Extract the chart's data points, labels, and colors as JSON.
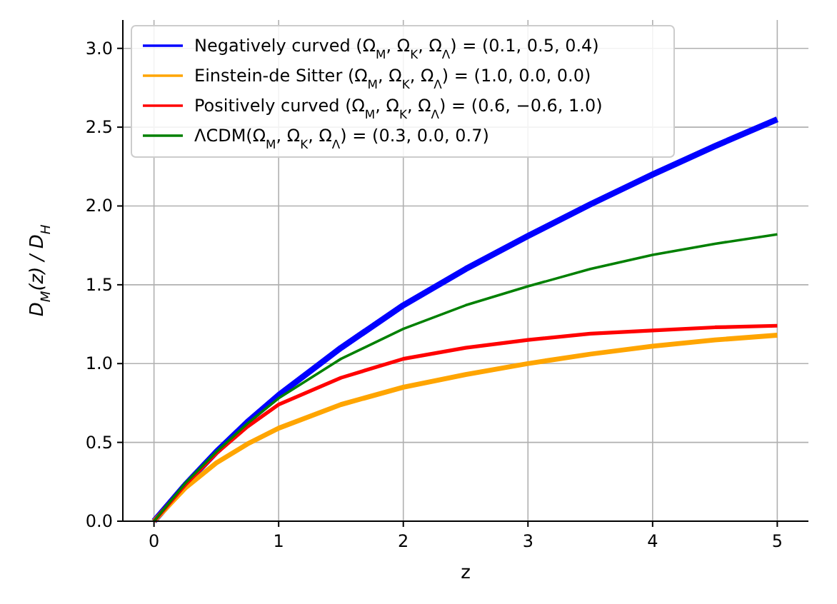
{
  "chart_data": {
    "type": "line",
    "xlabel": "z",
    "ylabel": "D$_{M}$(z) / D$_{H}$",
    "x": [
      0,
      0.25,
      0.5,
      0.75,
      1,
      1.5,
      2,
      2.5,
      3,
      3.5,
      4,
      4.5,
      5
    ],
    "series": [
      {
        "name": "Negatively curved (Ω$_{M}$, Ω$_{K}$, Ω$_{Λ}$) = (0.1, 0.5, 0.4)",
        "color": "#0000ff",
        "values": [
          0,
          0.23,
          0.44,
          0.63,
          0.8,
          1.1,
          1.37,
          1.6,
          1.81,
          2.01,
          2.2,
          2.38,
          2.55
        ]
      },
      {
        "name": "Einstein-de Sitter (Ω$_{M}$, Ω$_{K}$, Ω$_{Λ}$) = (1.0, 0.0, 0.0)",
        "color": "#ffa500",
        "values": [
          0,
          0.21,
          0.37,
          0.49,
          0.59,
          0.74,
          0.85,
          0.93,
          1.0,
          1.06,
          1.11,
          1.15,
          1.18
        ]
      },
      {
        "name": "Positively curved (Ω$_{M}$, Ω$_{K}$, Ω$_{Λ}$) = (0.6, −0.6, 1.0)",
        "color": "#ff0000",
        "values": [
          0,
          0.23,
          0.43,
          0.6,
          0.74,
          0.91,
          1.03,
          1.1,
          1.15,
          1.19,
          1.21,
          1.23,
          1.24
        ]
      },
      {
        "name": "ΛCDM(Ω$_{M}$, Ω$_{K}$, Ω$_{Λ}$) = (0.3, 0.0, 0.7)",
        "color": "#008000",
        "values": [
          0,
          0.24,
          0.44,
          0.62,
          0.78,
          1.03,
          1.22,
          1.37,
          1.49,
          1.6,
          1.69,
          1.76,
          1.82
        ]
      }
    ],
    "xlim": [
      -0.25,
      5.25
    ],
    "xticks": [
      0,
      1,
      2,
      3,
      4,
      5
    ],
    "ylim": [
      0,
      3.18
    ],
    "yticks": [
      {
        "value": 0,
        "label": "0.0"
      },
      {
        "value": 0.5,
        "label": "0.5"
      },
      {
        "value": 1,
        "label": "1.0"
      },
      {
        "value": 1.5,
        "label": "1.5"
      },
      {
        "value": 2,
        "label": "2.0"
      },
      {
        "value": 2.5,
        "label": "2.5"
      },
      {
        "value": 3,
        "label": "3.0"
      }
    ],
    "grid": true,
    "legend": "top left",
    "line_style": "solid",
    "marker": "none"
  }
}
